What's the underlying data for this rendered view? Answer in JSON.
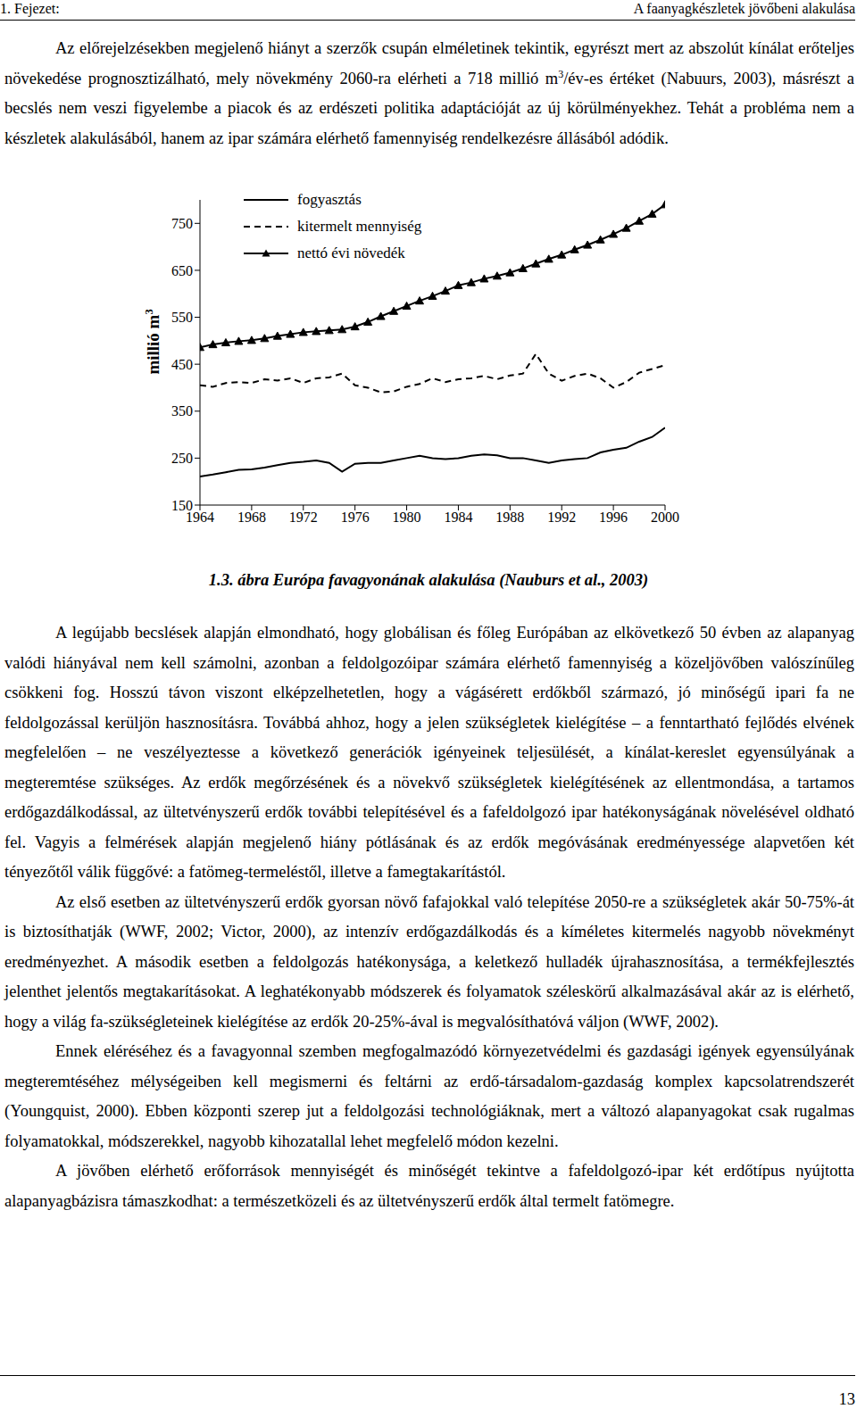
{
  "header": {
    "left": "1. Fejezet:",
    "right": "A faanyagkészletek jövőbeni alakulása"
  },
  "paragraphs_before": [
    [
      "Az előrejelzésekben megjelenő hiányt a szerzők csupán elméletinek tekintik, egyrészt mert az abszolút kínálat erőteljes növekedése prognosztizálható, mely növekmény 2060-ra elérheti a 718 millió m",
      {
        "sup": "3"
      },
      "/év-es értéket (Nabuurs, 2003), másrészt a becslés nem veszi figyelembe a piacok és az erdészeti politika adaptációját az új körülményekhez. Tehát a probléma nem a készletek alakulásából, hanem az ipar számára elérhető famennyiség rendelkezésre állásából adódik."
    ]
  ],
  "chart_data": {
    "type": "line",
    "y_label": [
      "millió m",
      {
        "sup": "3"
      }
    ],
    "legend": "upper left",
    "x": [
      1964,
      1965,
      1966,
      1967,
      1968,
      1969,
      1970,
      1971,
      1972,
      1973,
      1974,
      1975,
      1976,
      1977,
      1978,
      1979,
      1980,
      1981,
      1982,
      1983,
      1984,
      1985,
      1986,
      1987,
      1988,
      1989,
      1990,
      1991,
      1992,
      1993,
      1994,
      1995,
      1996,
      1997,
      1998,
      1999,
      2000
    ],
    "xlim": [
      1964,
      2000
    ],
    "xticks": [
      1964,
      1968,
      1972,
      1976,
      1980,
      1984,
      1988,
      1992,
      1996,
      2000
    ],
    "ylim": [
      150,
      800
    ],
    "yticks": [
      150,
      250,
      350,
      450,
      550,
      650,
      750
    ],
    "series": [
      {
        "name": "fogyasztás",
        "color": "#000000",
        "line_style": "solid",
        "values": [
          211,
          215,
          220,
          225,
          226,
          230,
          235,
          240,
          242,
          245,
          240,
          221,
          238,
          240,
          240,
          245,
          250,
          255,
          250,
          248,
          250,
          255,
          258,
          256,
          250,
          250,
          245,
          240,
          245,
          248,
          250,
          262,
          268,
          272,
          285,
          295,
          315
        ]
      },
      {
        "name": "kitermelt mennyiség",
        "color": "#000000",
        "line_style": "dashed",
        "values": [
          405,
          402,
          410,
          412,
          410,
          418,
          415,
          420,
          410,
          420,
          422,
          430,
          405,
          400,
          390,
          392,
          402,
          408,
          420,
          412,
          418,
          420,
          425,
          418,
          426,
          430,
          472,
          430,
          415,
          425,
          430,
          420,
          400,
          412,
          432,
          440,
          448
        ]
      },
      {
        "name": "nettó évi növedék",
        "color": "#000000",
        "line_style": "solid",
        "marker": "triangle",
        "values": [
          486,
          492,
          496,
          499,
          501,
          505,
          510,
          514,
          518,
          520,
          522,
          524,
          530,
          540,
          552,
          563,
          574,
          585,
          595,
          606,
          618,
          624,
          632,
          638,
          645,
          654,
          664,
          674,
          683,
          694,
          704,
          715,
          727,
          740,
          755,
          770,
          790
        ]
      }
    ]
  },
  "caption": "1.3. ábra Európa favagyonának alakulása (Nauburs et al., 2003)",
  "paragraphs_after": [
    [
      "A legújabb becslések alapján elmondható, hogy globálisan és főleg Európában az elkövetkező 50 évben az alapanyag valódi hiányával nem kell számolni, azonban a feldolgozóipar számára elérhető famennyiség a közeljövőben valószínűleg csökkeni fog. Hosszú távon viszont elképzelhetetlen, hogy a vágásérett erdőkből származó, jó minőségű ipari fa ne feldolgozással kerüljön hasznosításra. Továbbá ahhoz, hogy a jelen szükségletek kielégítése – a fenntartható fejlődés elvének megfelelően – ne veszélyeztesse a következő generációk igényeinek teljesülését, a kínálat-kereslet egyensúlyának a megteremtése szükséges. Az erdők megőrzésének és a növekvő szükségletek kielégítésének az ellentmondása, a tartamos erdőgazdálkodással, az ültetvényszerű erdők további telepítésével és a fafeldolgozó ipar hatékonyságának növelésével oldható fel. Vagyis a felmérések alapján megjelenő hiány pótlásának és az erdők megóvásának eredményessége alapvetően két tényezőtől válik függővé: a fatömeg-termeléstől, illetve a famegtakarítástól."
    ],
    [
      "Az első esetben az ültetvényszerű erdők gyorsan növő fafajokkal való telepítése 2050-re a szükségletek akár 50-75%-át is biztosíthatják (WWF, 2002; Victor, 2000), az intenzív erdőgazdálkodás és a kíméletes kitermelés nagyobb növekményt eredményezhet. A második esetben a feldolgozás hatékonysága, a keletkező hulladék újrahasznosítása, a termékfejlesztés jelenthet jelentős megtakarításokat. A leghatékonyabb módszerek és folyamatok széleskörű alkalmazásával akár az is elérhető, hogy a világ fa-szükségleteinek kielégítése az erdők 20-25%-ával is megvalósíthatóvá váljon (WWF, 2002)."
    ],
    [
      "Ennek eléréséhez és a favagyonnal szemben megfogalmazódó környezetvédelmi és gazdasági igények egyensúlyának megteremtéséhez mélységeiben kell megismerni és feltárni az erdő-társadalom-gazdaság komplex kapcsolatrendszerét (Youngquist, 2000). Ebben központi szerep jut a feldolgozási technológiáknak, mert a változó alapanyagokat csak rugalmas folyamatokkal, módszerekkel, nagyobb kihozatallal lehet megfelelő módon kezelni."
    ],
    [
      "A jövőben elérhető erőforrások mennyiségét és minőségét tekintve a fafeldolgozó-ipar két erdőtípus nyújtotta alapanyagbázisra támaszkodhat: a természetközeli és az ültetvényszerű erdők által termelt fatömegre."
    ]
  ],
  "page_number": "13"
}
